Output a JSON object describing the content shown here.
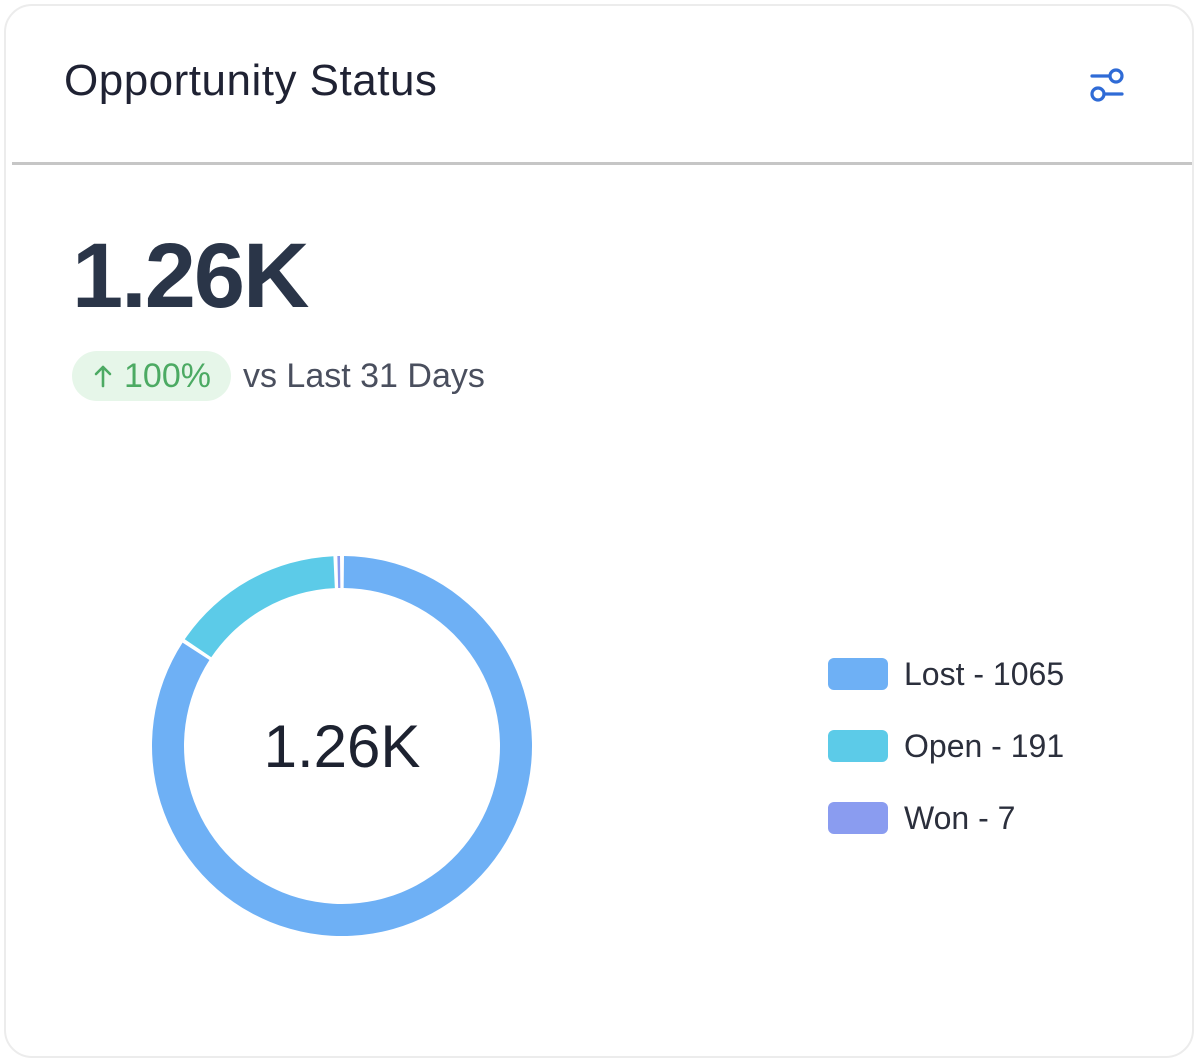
{
  "card": {
    "title": "Opportunity Status",
    "filter_icon": "sliders-icon",
    "accent_color": "#2f6bd6"
  },
  "summary": {
    "value": "1.26K",
    "trend_icon": "arrow-up-icon",
    "trend_percent": "100%",
    "trend_color": "#4caa63",
    "trend_text": "vs Last 31 Days"
  },
  "chart_data": {
    "type": "pie",
    "variant": "donut",
    "center_label": "1.26K",
    "categories": [
      "Lost",
      "Open",
      "Won"
    ],
    "values": [
      1065,
      191,
      7
    ],
    "colors": [
      "#6eb0f5",
      "#5ccbe8",
      "#8a9cf0"
    ],
    "legend_labels": [
      "Lost - 1065",
      "Open - 191",
      "Won - 7"
    ],
    "legend_position": "right",
    "start_angle_deg": 0,
    "direction": "clockwise"
  }
}
